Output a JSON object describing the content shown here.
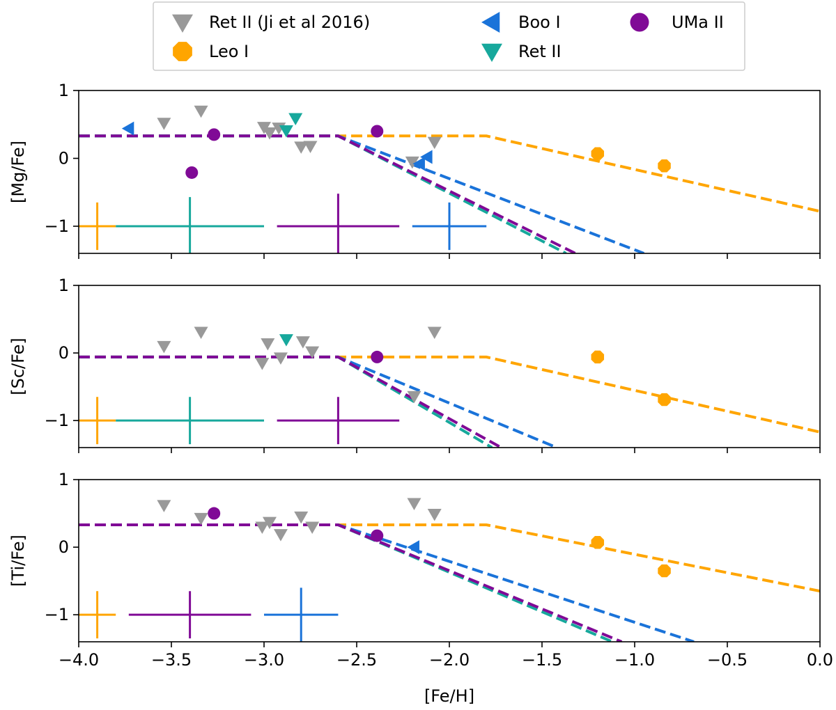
{
  "chart_data": {
    "type": "scatter",
    "xlabel": "[Fe/H]",
    "xlim": [
      -4.0,
      0.0
    ],
    "x_ticks": [
      "−4.0",
      "−3.5",
      "−3.0",
      "−2.5",
      "−2.0",
      "−1.5",
      "−1.0",
      "−0.5",
      "0.0"
    ],
    "colors": {
      "Ret II (Ji et al 2016)": "#999999",
      "Leo I": "#ffa500",
      "Boo I": "#1a73d9",
      "Ret II": "#17a89c",
      "UMa II": "#800a96"
    },
    "legend": {
      "placement": "top-center",
      "entries": [
        {
          "label": "Ret II (Ji et al 2016)",
          "marker": "triangle-down"
        },
        {
          "label": "Leo I",
          "marker": "octagon"
        },
        {
          "label": "Boo I",
          "marker": "triangle-left"
        },
        {
          "label": "Ret II",
          "marker": "triangle-down"
        },
        {
          "label": "UMa II",
          "marker": "circle"
        }
      ]
    },
    "panels": [
      {
        "ylabel": "[Mg/Fe]",
        "ylim": [
          -1.4,
          1.0
        ],
        "y_ticks": [
          "−1",
          "0",
          "1"
        ],
        "series": [
          {
            "name": "Ret II (Ji et al 2016)",
            "marker": "triangle-down",
            "points": [
              [
                -3.54,
                0.52
              ],
              [
                -3.34,
                0.7
              ],
              [
                -3.0,
                0.46
              ],
              [
                -2.97,
                0.38
              ],
              [
                -2.92,
                0.45
              ],
              [
                -2.8,
                0.17
              ],
              [
                -2.75,
                0.18
              ],
              [
                -2.2,
                -0.05
              ],
              [
                -2.08,
                0.24
              ]
            ]
          },
          {
            "name": "Leo I",
            "marker": "octagon",
            "points": [
              [
                -1.2,
                0.07
              ],
              [
                -0.84,
                -0.11
              ]
            ]
          },
          {
            "name": "Boo I",
            "marker": "triangle-left",
            "points": [
              [
                -3.73,
                0.44
              ],
              [
                -2.16,
                -0.08
              ],
              [
                -2.12,
                0.02
              ]
            ]
          },
          {
            "name": "Ret II",
            "marker": "triangle-down",
            "points": [
              [
                -2.88,
                0.41
              ],
              [
                -2.83,
                0.59
              ]
            ]
          },
          {
            "name": "UMa II",
            "marker": "circle",
            "points": [
              [
                -3.39,
                -0.21
              ],
              [
                -3.27,
                0.35
              ],
              [
                -2.39,
                0.4
              ]
            ]
          }
        ],
        "models": [
          {
            "name": "Leo I",
            "points": [
              [
                -4.0,
                0.33
              ],
              [
                -1.8,
                0.33
              ],
              [
                0.0,
                -0.78
              ]
            ]
          },
          {
            "name": "Boo I",
            "points": [
              [
                -4.0,
                0.33
              ],
              [
                -2.6,
                0.33
              ],
              [
                -0.95,
                -1.4
              ]
            ]
          },
          {
            "name": "Ret II",
            "points": [
              [
                -4.0,
                0.33
              ],
              [
                -2.6,
                0.33
              ],
              [
                -1.37,
                -1.4
              ]
            ]
          },
          {
            "name": "UMa II",
            "points": [
              [
                -4.0,
                0.33
              ],
              [
                -2.6,
                0.33
              ],
              [
                -1.32,
                -1.4
              ]
            ]
          }
        ],
        "error_bars": [
          {
            "name": "Leo I",
            "x": -3.9,
            "y": -1.0,
            "xerr": 0.1,
            "yerr": 0.35
          },
          {
            "name": "Ret II",
            "x": -3.4,
            "y": -1.0,
            "xerr": 0.4,
            "yerr": 0.43
          },
          {
            "name": "UMa II",
            "x": -2.6,
            "y": -1.0,
            "xerr": 0.33,
            "yerr": 0.48
          },
          {
            "name": "Boo I",
            "x": -2.0,
            "y": -1.0,
            "xerr": 0.2,
            "yerr": 0.35
          }
        ]
      },
      {
        "ylabel": "[Sc/Fe]",
        "ylim": [
          -1.4,
          1.0
        ],
        "y_ticks": [
          "−1",
          "0",
          "1"
        ],
        "series": [
          {
            "name": "Ret II (Ji et al 2016)",
            "marker": "triangle-down",
            "points": [
              [
                -3.54,
                0.1
              ],
              [
                -3.34,
                0.31
              ],
              [
                -3.01,
                -0.15
              ],
              [
                -2.98,
                0.14
              ],
              [
                -2.91,
                -0.07
              ],
              [
                -2.79,
                0.17
              ],
              [
                -2.74,
                0.02
              ],
              [
                -2.19,
                -0.64
              ],
              [
                -2.08,
                0.31
              ]
            ]
          },
          {
            "name": "Leo I",
            "marker": "octagon",
            "points": [
              [
                -1.2,
                -0.06
              ],
              [
                -0.84,
                -0.69
              ]
            ]
          },
          {
            "name": "Ret II",
            "marker": "triangle-down",
            "points": [
              [
                -2.88,
                0.2
              ]
            ]
          },
          {
            "name": "UMa II",
            "marker": "circle",
            "points": [
              [
                -2.39,
                -0.06
              ]
            ]
          }
        ],
        "models": [
          {
            "name": "Leo I",
            "points": [
              [
                -4.0,
                -0.06
              ],
              [
                -1.8,
                -0.06
              ],
              [
                0.0,
                -1.17
              ]
            ]
          },
          {
            "name": "Boo I",
            "points": [
              [
                -4.0,
                -0.06
              ],
              [
                -2.6,
                -0.06
              ],
              [
                -1.42,
                -1.4
              ]
            ]
          },
          {
            "name": "Ret II",
            "points": [
              [
                -4.0,
                -0.06
              ],
              [
                -2.6,
                -0.06
              ],
              [
                -1.77,
                -1.4
              ]
            ]
          },
          {
            "name": "UMa II",
            "points": [
              [
                -4.0,
                -0.06
              ],
              [
                -2.6,
                -0.06
              ],
              [
                -1.72,
                -1.4
              ]
            ]
          }
        ],
        "error_bars": [
          {
            "name": "Leo I",
            "x": -3.9,
            "y": -1.0,
            "xerr": 0.1,
            "yerr": 0.35
          },
          {
            "name": "Ret II",
            "x": -3.4,
            "y": -1.0,
            "xerr": 0.4,
            "yerr": 0.35
          },
          {
            "name": "UMa II",
            "x": -2.6,
            "y": -1.0,
            "xerr": 0.33,
            "yerr": 0.35
          }
        ]
      },
      {
        "ylabel": "[Ti/Fe]",
        "ylim": [
          -1.4,
          1.0
        ],
        "y_ticks": [
          "−1",
          "0",
          "1"
        ],
        "series": [
          {
            "name": "Ret II (Ji et al 2016)",
            "marker": "triangle-down",
            "points": [
              [
                -3.54,
                0.62
              ],
              [
                -3.34,
                0.43
              ],
              [
                -3.01,
                0.3
              ],
              [
                -2.97,
                0.37
              ],
              [
                -2.91,
                0.19
              ],
              [
                -2.8,
                0.45
              ],
              [
                -2.74,
                0.3
              ],
              [
                -2.19,
                0.65
              ],
              [
                -2.08,
                0.49
              ]
            ]
          },
          {
            "name": "Leo I",
            "marker": "octagon",
            "points": [
              [
                -1.2,
                0.07
              ],
              [
                -0.84,
                -0.35
              ]
            ]
          },
          {
            "name": "Boo I",
            "marker": "triangle-left",
            "points": [
              [
                -2.19,
                0.0
              ]
            ]
          },
          {
            "name": "UMa II",
            "marker": "circle",
            "points": [
              [
                -3.27,
                0.5
              ],
              [
                -2.39,
                0.17
              ]
            ]
          }
        ],
        "models": [
          {
            "name": "Leo I",
            "points": [
              [
                -4.0,
                0.33
              ],
              [
                -1.8,
                0.33
              ],
              [
                0.0,
                -0.65
              ]
            ]
          },
          {
            "name": "Boo I",
            "points": [
              [
                -4.0,
                0.33
              ],
              [
                -2.6,
                0.33
              ],
              [
                -0.68,
                -1.4
              ]
            ]
          },
          {
            "name": "Ret II",
            "points": [
              [
                -4.0,
                0.33
              ],
              [
                -2.6,
                0.33
              ],
              [
                -1.12,
                -1.4
              ]
            ]
          },
          {
            "name": "UMa II",
            "points": [
              [
                -4.0,
                0.33
              ],
              [
                -2.6,
                0.33
              ],
              [
                -1.07,
                -1.4
              ]
            ]
          }
        ],
        "error_bars": [
          {
            "name": "Leo I",
            "x": -3.9,
            "y": -1.0,
            "xerr": 0.1,
            "yerr": 0.35
          },
          {
            "name": "UMa II",
            "x": -3.4,
            "y": -1.0,
            "xerr": 0.33,
            "yerr": 0.35
          },
          {
            "name": "Boo I",
            "x": -2.8,
            "y": -1.0,
            "xerr": 0.2,
            "yerr": 0.4
          }
        ]
      }
    ]
  }
}
